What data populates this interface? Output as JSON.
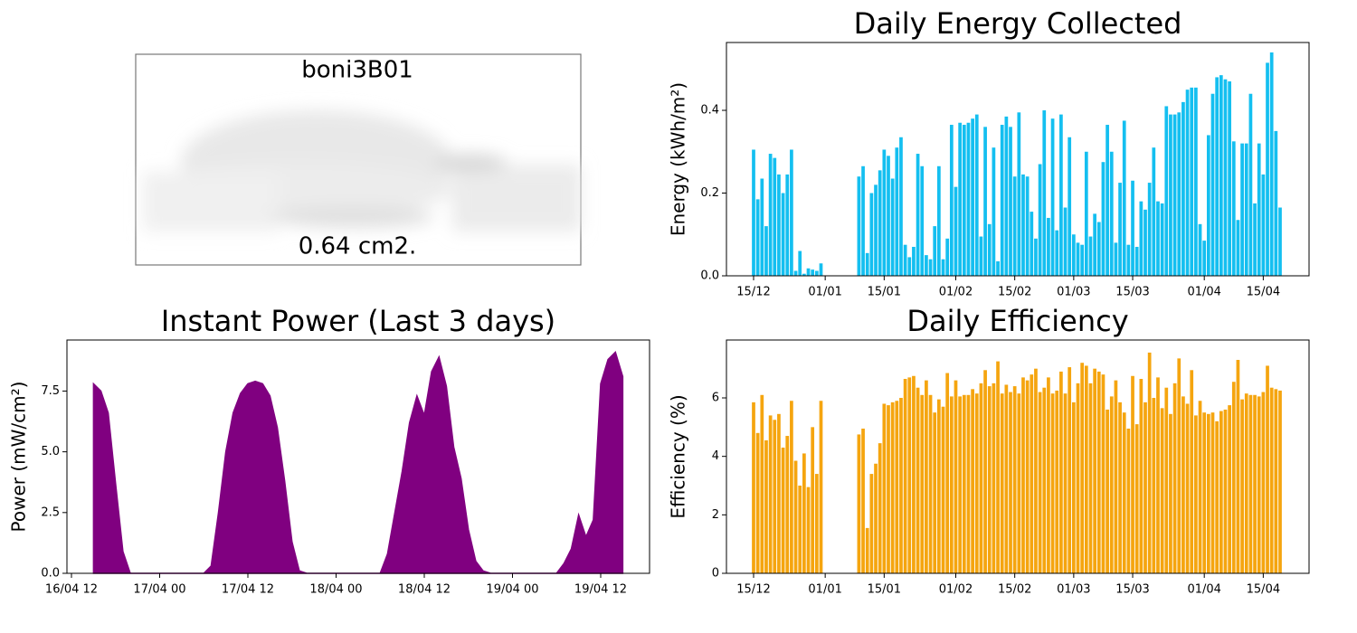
{
  "device": {
    "name": "boni3B01",
    "area": "0.64 cm2."
  },
  "chart_data": [
    {
      "type": "area",
      "title": "Instant Power (Last 3 days)",
      "y_label": "Power (mW/cm²)",
      "color": "#800080",
      "x": [
        "16/04 12",
        "16/04 13",
        "16/04 14",
        "16/04 15",
        "16/04 16",
        "16/04 17",
        "16/04 18",
        "16/04 19",
        "16/04 20",
        "16/04 21",
        "16/04 22",
        "16/04 23",
        "17/04 00",
        "17/04 01",
        "17/04 02",
        "17/04 03",
        "17/04 04",
        "17/04 05",
        "17/04 06",
        "17/04 07",
        "17/04 08",
        "17/04 09",
        "17/04 10",
        "17/04 11",
        "17/04 12",
        "17/04 13",
        "17/04 14",
        "17/04 15",
        "17/04 16",
        "17/04 17",
        "17/04 18",
        "17/04 19",
        "17/04 20",
        "17/04 21",
        "17/04 22",
        "17/04 23",
        "18/04 00",
        "18/04 01",
        "18/04 02",
        "18/04 03",
        "18/04 04",
        "18/04 05",
        "18/04 06",
        "18/04 07",
        "18/04 08",
        "18/04 09",
        "18/04 10",
        "18/04 11",
        "18/04 12",
        "18/04 13",
        "18/04 14",
        "18/04 15",
        "18/04 16",
        "18/04 17",
        "18/04 18",
        "18/04 19",
        "18/04 20",
        "18/04 21",
        "18/04 22",
        "18/04 23",
        "19/04 00",
        "19/04 01",
        "19/04 02",
        "19/04 03",
        "19/04 04",
        "19/04 05",
        "19/04 06",
        "19/04 07",
        "19/04 08",
        "19/04 09",
        "19/04 10",
        "19/04 11",
        "19/04 12",
        "19/04 13",
        "19/04 14",
        "19/04 15",
        "19/04 16"
      ],
      "values": [
        null,
        null,
        null,
        7.8,
        7.5,
        6.6,
        3.7,
        0.9,
        0,
        0,
        0,
        0,
        0,
        0,
        0,
        0,
        0,
        0,
        0,
        0.3,
        2.5,
        5.0,
        6.6,
        7.4,
        7.8,
        7.9,
        7.8,
        7.3,
        6.0,
        3.8,
        1.3,
        0.1,
        0,
        0,
        0,
        0,
        0,
        0,
        0,
        0,
        0,
        0,
        0,
        0.8,
        2.5,
        4.2,
        6.2,
        7.3,
        6.5,
        8.3,
        8.9,
        7.7,
        5.2,
        3.9,
        1.8,
        0.5,
        0.1,
        0,
        0,
        0,
        0,
        0,
        0,
        0,
        0,
        0,
        0,
        0.4,
        1.0,
        2.4,
        1.5,
        2.2,
        7.8,
        8.8,
        9.1,
        8.1,
        null
      ],
      "xticks": [
        "16/04 12",
        "17/04 00",
        "17/04 12",
        "18/04 00",
        "18/04 12",
        "19/04 00",
        "19/04 12"
      ],
      "ylim": [
        0,
        9.6
      ],
      "yticks": [
        {
          "value": 0,
          "label": "0.0"
        },
        2.5,
        {
          "value": 5,
          "label": "5.0"
        },
        7.5
      ]
    },
    {
      "type": "bar",
      "title": "Daily Energy Collected",
      "y_label": "Energy (kWh/m²)",
      "color": "#14bff0",
      "x": [
        "15/12",
        "16/12",
        "17/12",
        "18/12",
        "19/12",
        "20/12",
        "21/12",
        "22/12",
        "23/12",
        "24/12",
        "25/12",
        "26/12",
        "27/12",
        "28/12",
        "29/12",
        "30/12",
        "31/12",
        "01/01",
        "02/01",
        "03/01",
        "04/01",
        "05/01",
        "06/01",
        "07/01",
        "08/01",
        "09/01",
        "10/01",
        "11/01",
        "12/01",
        "13/01",
        "14/01",
        "15/01",
        "16/01",
        "17/01",
        "18/01",
        "19/01",
        "20/01",
        "21/01",
        "22/01",
        "23/01",
        "24/01",
        "25/01",
        "26/01",
        "27/01",
        "28/01",
        "29/01",
        "30/01",
        "31/01",
        "01/02",
        "02/02",
        "03/02",
        "04/02",
        "05/02",
        "06/02",
        "07/02",
        "08/02",
        "09/02",
        "10/02",
        "11/02",
        "12/02",
        "13/02",
        "14/02",
        "15/02",
        "16/02",
        "17/02",
        "18/02",
        "19/02",
        "20/02",
        "21/02",
        "22/02",
        "23/02",
        "24/02",
        "25/02",
        "26/02",
        "27/02",
        "28/02",
        "01/03",
        "02/03",
        "03/03",
        "04/03",
        "05/03",
        "06/03",
        "07/03",
        "08/03",
        "09/03",
        "10/03",
        "11/03",
        "12/03",
        "13/03",
        "14/03",
        "15/03",
        "16/03",
        "17/03",
        "18/03",
        "19/03",
        "20/03",
        "21/03",
        "22/03",
        "23/03",
        "24/03",
        "25/03",
        "26/03",
        "27/03",
        "28/03",
        "29/03",
        "30/03",
        "31/03",
        "01/04",
        "02/04",
        "03/04",
        "04/04",
        "05/04",
        "06/04",
        "07/04",
        "08/04",
        "09/04",
        "10/04",
        "11/04",
        "12/04",
        "13/04",
        "14/04",
        "15/04",
        "16/04",
        "17/04",
        "18/04",
        "19/04"
      ],
      "values": [
        0.305,
        0.185,
        0.235,
        0.12,
        0.295,
        0.285,
        0.245,
        0.2,
        0.245,
        0.305,
        0.012,
        0.06,
        0.005,
        0.018,
        0.015,
        0.012,
        0.03,
        null,
        null,
        null,
        null,
        null,
        null,
        null,
        null,
        0.24,
        0.265,
        0.055,
        0.2,
        0.22,
        0.255,
        0.305,
        0.29,
        0.235,
        0.31,
        0.335,
        0.075,
        0.045,
        0.07,
        0.295,
        0.265,
        0.05,
        0.04,
        0.12,
        0.265,
        0.04,
        0.09,
        0.365,
        0.215,
        0.37,
        0.365,
        0.37,
        0.38,
        0.39,
        0.095,
        0.36,
        0.125,
        0.31,
        0.035,
        0.365,
        0.385,
        0.36,
        0.24,
        0.395,
        0.245,
        0.24,
        0.155,
        0.09,
        0.27,
        0.4,
        0.14,
        0.38,
        0.11,
        0.39,
        0.165,
        0.335,
        0.1,
        0.08,
        0.075,
        0.3,
        0.095,
        0.15,
        0.13,
        0.275,
        0.365,
        0.3,
        0.08,
        0.225,
        0.375,
        0.075,
        0.23,
        0.07,
        0.18,
        0.16,
        0.225,
        0.31,
        0.18,
        0.175,
        0.41,
        0.39,
        0.39,
        0.395,
        0.42,
        0.45,
        0.455,
        0.455,
        0.125,
        0.085,
        0.34,
        0.44,
        0.48,
        0.485,
        0.475,
        0.47,
        0.325,
        0.135,
        0.32,
        0.32,
        0.44,
        0.175,
        0.32,
        0.245,
        0.515,
        0.54,
        0.35,
        0.165
      ],
      "xticks": [
        "15/12",
        "01/01",
        "15/01",
        "01/02",
        "15/02",
        "01/03",
        "15/03",
        "01/04",
        "15/04"
      ],
      "ylim": [
        0,
        0.564
      ],
      "yticks": [
        {
          "value": 0,
          "label": "0.0"
        },
        0.2,
        0.4
      ]
    },
    {
      "type": "bar",
      "title": "Daily Efficiency",
      "y_label": "Efficiency (%)",
      "color": "#f5a50f",
      "x": [
        "15/12",
        "16/12",
        "17/12",
        "18/12",
        "19/12",
        "20/12",
        "21/12",
        "22/12",
        "23/12",
        "24/12",
        "25/12",
        "26/12",
        "27/12",
        "28/12",
        "29/12",
        "30/12",
        "31/12",
        "01/01",
        "02/01",
        "03/01",
        "04/01",
        "05/01",
        "06/01",
        "07/01",
        "08/01",
        "09/01",
        "10/01",
        "11/01",
        "12/01",
        "13/01",
        "14/01",
        "15/01",
        "16/01",
        "17/01",
        "18/01",
        "19/01",
        "20/01",
        "21/01",
        "22/01",
        "23/01",
        "24/01",
        "25/01",
        "26/01",
        "27/01",
        "28/01",
        "29/01",
        "30/01",
        "31/01",
        "01/02",
        "02/02",
        "03/02",
        "04/02",
        "05/02",
        "06/02",
        "07/02",
        "08/02",
        "09/02",
        "10/02",
        "11/02",
        "12/02",
        "13/02",
        "14/02",
        "15/02",
        "16/02",
        "17/02",
        "18/02",
        "19/02",
        "20/02",
        "21/02",
        "22/02",
        "23/02",
        "24/02",
        "25/02",
        "26/02",
        "27/02",
        "28/02",
        "01/03",
        "02/03",
        "03/03",
        "04/03",
        "05/03",
        "06/03",
        "07/03",
        "08/03",
        "09/03",
        "10/03",
        "11/03",
        "12/03",
        "13/03",
        "14/03",
        "15/03",
        "16/03",
        "17/03",
        "18/03",
        "19/03",
        "20/03",
        "21/03",
        "22/03",
        "23/03",
        "24/03",
        "25/03",
        "26/03",
        "27/03",
        "28/03",
        "29/03",
        "30/03",
        "31/03",
        "01/04",
        "02/04",
        "03/04",
        "04/04",
        "05/04",
        "06/04",
        "07/04",
        "08/04",
        "09/04",
        "10/04",
        "11/04",
        "12/04",
        "13/04",
        "14/04",
        "15/04",
        "16/04",
        "17/04",
        "18/04",
        "19/04"
      ],
      "values": [
        5.85,
        4.8,
        6.1,
        4.55,
        5.4,
        5.25,
        5.45,
        4.3,
        4.7,
        5.9,
        3.85,
        3.0,
        4.1,
        2.95,
        5.0,
        3.4,
        5.9,
        null,
        null,
        null,
        null,
        null,
        null,
        null,
        null,
        4.75,
        4.95,
        1.55,
        3.4,
        3.75,
        4.45,
        5.8,
        5.75,
        5.85,
        5.9,
        6.0,
        6.65,
        6.7,
        6.75,
        6.35,
        6.1,
        6.6,
        6.1,
        5.5,
        5.95,
        5.7,
        6.85,
        6.05,
        6.6,
        6.05,
        6.1,
        6.1,
        6.3,
        6.15,
        6.5,
        6.95,
        6.4,
        6.5,
        7.25,
        6.15,
        6.45,
        6.2,
        6.4,
        6.15,
        6.7,
        6.6,
        6.8,
        7.0,
        6.2,
        6.35,
        6.7,
        6.15,
        6.25,
        6.9,
        6.15,
        7.05,
        5.85,
        6.5,
        7.2,
        7.1,
        6.5,
        7.0,
        6.9,
        6.8,
        5.6,
        6.05,
        6.6,
        5.85,
        5.5,
        4.95,
        6.75,
        5.1,
        6.65,
        5.85,
        7.55,
        6.0,
        6.7,
        5.65,
        6.35,
        5.45,
        6.5,
        7.35,
        6.05,
        5.8,
        6.95,
        5.4,
        5.9,
        5.5,
        5.45,
        5.5,
        5.2,
        5.55,
        5.6,
        5.75,
        6.55,
        7.3,
        5.95,
        6.15,
        6.1,
        6.1,
        6.05,
        6.2,
        7.1,
        6.35,
        6.3,
        6.25
      ],
      "xticks": [
        "15/12",
        "01/01",
        "15/01",
        "01/02",
        "15/02",
        "01/03",
        "15/03",
        "01/04",
        "15/04"
      ],
      "ylim": [
        0,
        7.98
      ],
      "yticks": [
        0,
        2,
        4,
        6
      ]
    }
  ]
}
